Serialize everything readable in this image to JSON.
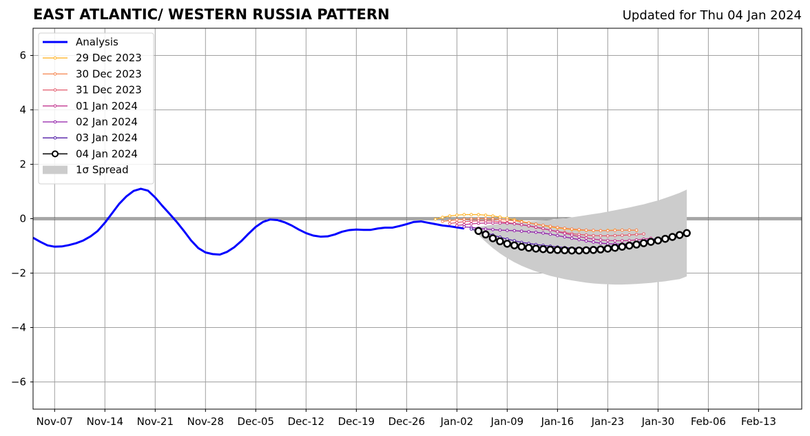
{
  "header": {
    "title": "EAST ATLANTIC/ WESTERN RUSSIA PATTERN",
    "updated": "Updated for Thu 04 Jan 2024"
  },
  "chart_data": {
    "type": "line",
    "title": "EAST ATLANTIC/ WESTERN RUSSIA PATTERN",
    "subtitle": "Updated for Thu 04 Jan 2024",
    "x_start": "2023-11-04",
    "xlim": [
      "2023-11-04",
      "2024-02-19"
    ],
    "ylim": [
      -7,
      7
    ],
    "x_ticks": [
      "Nov-07",
      "Nov-14",
      "Nov-21",
      "Nov-28",
      "Dec-05",
      "Dec-12",
      "Dec-19",
      "Dec-26",
      "Jan-02",
      "Jan-09",
      "Jan-16",
      "Jan-23",
      "Jan-30",
      "Feb-06",
      "Feb-13"
    ],
    "y_ticks": [
      6,
      4,
      2,
      0,
      -2,
      -4,
      -6
    ],
    "y_tick_labels": [
      "6",
      "4",
      "2",
      "0",
      "−2",
      "−4",
      "−6"
    ],
    "grid": true,
    "zero_line": true,
    "legend_position": "top-left",
    "analysis": {
      "name": "Analysis",
      "color": "#0000ff",
      "dates": [
        "2023-11-04",
        "2023-11-05",
        "2023-11-06",
        "2023-11-07",
        "2023-11-08",
        "2023-11-09",
        "2023-11-10",
        "2023-11-11",
        "2023-11-12",
        "2023-11-13",
        "2023-11-14",
        "2023-11-15",
        "2023-11-16",
        "2023-11-17",
        "2023-11-18",
        "2023-11-19",
        "2023-11-20",
        "2023-11-21",
        "2023-11-22",
        "2023-11-23",
        "2023-11-24",
        "2023-11-25",
        "2023-11-26",
        "2023-11-27",
        "2023-11-28",
        "2023-11-29",
        "2023-11-30",
        "2023-12-01",
        "2023-12-02",
        "2023-12-03",
        "2023-12-04",
        "2023-12-05",
        "2023-12-06",
        "2023-12-07",
        "2023-12-08",
        "2023-12-09",
        "2023-12-10",
        "2023-12-11",
        "2023-12-12",
        "2023-12-13",
        "2023-12-14",
        "2023-12-15",
        "2023-12-16",
        "2023-12-17",
        "2023-12-18",
        "2023-12-19",
        "2023-12-20",
        "2023-12-21",
        "2023-12-22",
        "2023-12-23",
        "2023-12-24",
        "2023-12-25",
        "2023-12-26",
        "2023-12-27",
        "2023-12-28",
        "2023-12-29",
        "2023-12-30",
        "2023-12-31",
        "2024-01-01",
        "2024-01-02",
        "2024-01-03"
      ],
      "values": [
        -0.7,
        -0.85,
        -0.98,
        -1.03,
        -1.02,
        -0.97,
        -0.9,
        -0.8,
        -0.65,
        -0.45,
        -0.15,
        0.2,
        0.55,
        0.82,
        1.02,
        1.1,
        1.03,
        0.78,
        0.47,
        0.18,
        -0.12,
        -0.45,
        -0.8,
        -1.08,
        -1.24,
        -1.3,
        -1.32,
        -1.22,
        -1.05,
        -0.82,
        -0.55,
        -0.3,
        -0.12,
        -0.03,
        -0.05,
        -0.13,
        -0.25,
        -0.4,
        -0.53,
        -0.62,
        -0.66,
        -0.65,
        -0.58,
        -0.48,
        -0.42,
        -0.4,
        -0.41,
        -0.41,
        -0.36,
        -0.33,
        -0.33,
        -0.27,
        -0.2,
        -0.12,
        -0.1,
        -0.15,
        -0.2,
        -0.25,
        -0.28,
        -0.32,
        -0.36
      ]
    },
    "forecasts": [
      {
        "name": "29 Dec 2023",
        "color": "#ffb429",
        "start": "2023-12-30",
        "values": [
          -0.02,
          0.05,
          0.1,
          0.13,
          0.15,
          0.15,
          0.15,
          0.13,
          0.1,
          0.06,
          0.02,
          -0.04,
          -0.1,
          -0.15,
          -0.2,
          -0.25,
          -0.3,
          -0.34,
          -0.37,
          -0.4,
          -0.42,
          -0.43,
          -0.44,
          -0.44,
          -0.43,
          -0.42,
          -0.42,
          -0.42,
          -0.43
        ]
      },
      {
        "name": "30 Dec 2023",
        "color": "#f5844d",
        "start": "2023-12-31",
        "values": [
          -0.1,
          -0.07,
          -0.04,
          -0.02,
          -0.01,
          0.0,
          0.0,
          -0.01,
          -0.03,
          -0.05,
          -0.08,
          -0.12,
          -0.16,
          -0.2,
          -0.24,
          -0.28,
          -0.32,
          -0.35,
          -0.38,
          -0.4,
          -0.42,
          -0.43,
          -0.44,
          -0.44,
          -0.43,
          -0.42,
          -0.42,
          -0.42
        ]
      },
      {
        "name": "31 Dec 2023",
        "color": "#e35a6c",
        "start": "2024-01-01",
        "values": [
          -0.18,
          -0.14,
          -0.11,
          -0.09,
          -0.08,
          -0.08,
          -0.09,
          -0.11,
          -0.14,
          -0.18,
          -0.22,
          -0.27,
          -0.32,
          -0.37,
          -0.42,
          -0.47,
          -0.51,
          -0.55,
          -0.58,
          -0.6,
          -0.62,
          -0.63,
          -0.63,
          -0.62,
          -0.61,
          -0.6,
          -0.58,
          -0.56
        ]
      },
      {
        "name": "01 Jan 2024",
        "color": "#c2368f",
        "start": "2024-01-02",
        "values": [
          -0.25,
          -0.22,
          -0.19,
          -0.17,
          -0.16,
          -0.16,
          -0.16,
          -0.17,
          -0.19,
          -0.22,
          -0.26,
          -0.31,
          -0.36,
          -0.42,
          -0.48,
          -0.54,
          -0.6,
          -0.66,
          -0.71,
          -0.75,
          -0.78,
          -0.8,
          -0.81,
          -0.81,
          -0.8,
          -0.78,
          -0.75,
          -0.72
        ]
      },
      {
        "name": "02 Jan 2024",
        "color": "#8f1ba8",
        "start": "2024-01-03",
        "values": [
          -0.3,
          -0.32,
          -0.35,
          -0.38,
          -0.4,
          -0.42,
          -0.43,
          -0.44,
          -0.46,
          -0.48,
          -0.5,
          -0.53,
          -0.57,
          -0.62,
          -0.67,
          -0.72,
          -0.77,
          -0.82,
          -0.86,
          -0.9,
          -0.92,
          -0.93,
          -0.93,
          -0.92,
          -0.9,
          -0.87,
          -0.83,
          -0.78
        ]
      },
      {
        "name": "03 Jan 2024",
        "color": "#4f1aa6",
        "start": "2024-01-04",
        "values": [
          -0.38,
          -0.45,
          -0.52,
          -0.6,
          -0.68,
          -0.75,
          -0.81,
          -0.87,
          -0.91,
          -0.95,
          -0.98,
          -1.01,
          -1.04,
          -1.06,
          -1.08,
          -1.09,
          -1.09,
          -1.08,
          -1.06,
          -1.03,
          -1.0,
          -0.96,
          -0.92,
          -0.87,
          -0.82,
          -0.77,
          -0.72
        ]
      }
    ],
    "forecast_latest": {
      "name": "04 Jan 2024",
      "color": "#000000",
      "start": "2024-01-05",
      "values": [
        -0.45,
        -0.58,
        -0.72,
        -0.83,
        -0.92,
        -0.98,
        -1.03,
        -1.07,
        -1.1,
        -1.12,
        -1.14,
        -1.15,
        -1.16,
        -1.17,
        -1.17,
        -1.16,
        -1.15,
        -1.13,
        -1.1,
        -1.07,
        -1.03,
        -0.99,
        -0.95,
        -0.9,
        -0.85,
        -0.8,
        -0.74,
        -0.67,
        -0.6,
        -0.53
      ]
    },
    "spread": {
      "name": "1σ Spread",
      "color": "#cccccc",
      "start": "2024-01-04",
      "end": "2024-02-03",
      "upper": [
        -0.35,
        -0.3,
        -0.26,
        -0.22,
        -0.19,
        -0.16,
        -0.14,
        -0.12,
        -0.1,
        -0.08,
        -0.06,
        -0.04,
        -0.01,
        0.02,
        0.05,
        0.09,
        0.13,
        0.17,
        0.21,
        0.26,
        0.31,
        0.36,
        0.41,
        0.47,
        0.53,
        0.6,
        0.67,
        0.76,
        0.85,
        0.95,
        1.07
      ],
      "lower": [
        -0.4,
        -0.6,
        -0.85,
        -1.08,
        -1.28,
        -1.45,
        -1.6,
        -1.73,
        -1.84,
        -1.94,
        -2.02,
        -2.1,
        -2.16,
        -2.22,
        -2.27,
        -2.31,
        -2.35,
        -2.38,
        -2.4,
        -2.41,
        -2.42,
        -2.42,
        -2.41,
        -2.4,
        -2.38,
        -2.36,
        -2.33,
        -2.3,
        -2.26,
        -2.22,
        -2.12
      ]
    }
  }
}
